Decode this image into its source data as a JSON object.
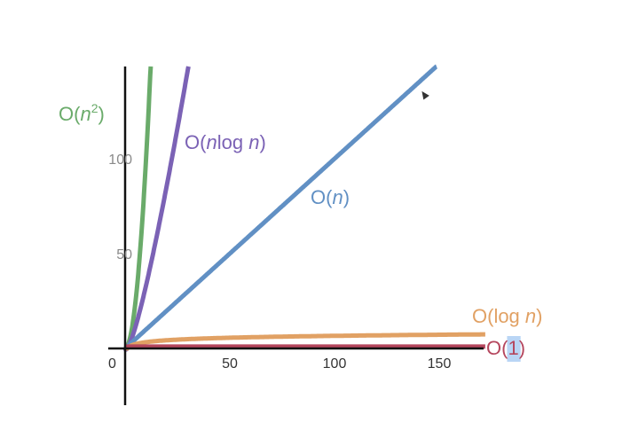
{
  "chart_data": {
    "type": "line",
    "title": "",
    "xlabel": "",
    "ylabel": "",
    "xlim": [
      0,
      172
    ],
    "ylim": [
      0,
      148
    ],
    "grid": false,
    "origin_label": "0",
    "xticks": [
      {
        "value": 50,
        "label": "50"
      },
      {
        "value": 100,
        "label": "100"
      },
      {
        "value": 150,
        "label": "150"
      }
    ],
    "yticks": [
      {
        "value": 50,
        "label": "50"
      },
      {
        "value": 100,
        "label": "100"
      }
    ],
    "series": [
      {
        "name": "O(n2)",
        "label_main": "O(",
        "label_var": "n",
        "label_sup": "2",
        "label_end": ")",
        "label_anchor_x": 0,
        "label_anchor_y": 125,
        "fn": "n2",
        "color": "#6aab6a"
      },
      {
        "name": "O(nlog n)",
        "label_main": "O(",
        "label_var": "n",
        "label_mid": "log ",
        "label_var2": "n",
        "label_end": ")",
        "label_anchor_x": 30,
        "label_anchor_y": 110,
        "fn": "nlogn",
        "color": "#7b62b5"
      },
      {
        "name": "O(n)",
        "label_main": "O(",
        "label_var": "n",
        "label_end": ")",
        "label_anchor_x": 90,
        "label_anchor_y": 79,
        "fn": "n",
        "color": "#6190c4"
      },
      {
        "name": "O(log n)",
        "label_main": "O(log ",
        "label_var": "n",
        "label_end": ")",
        "label_anchor_x": 165,
        "label_anchor_y": 15,
        "fn": "logn",
        "color": "#e1a164"
      },
      {
        "name": "O(1)",
        "label_main": "O(",
        "label_var": "",
        "label_highlight": "1",
        "label_end": ")",
        "label_anchor_x": 172,
        "label_anchor_y": 0,
        "fn": "one",
        "color": "#b5465d"
      }
    ]
  }
}
